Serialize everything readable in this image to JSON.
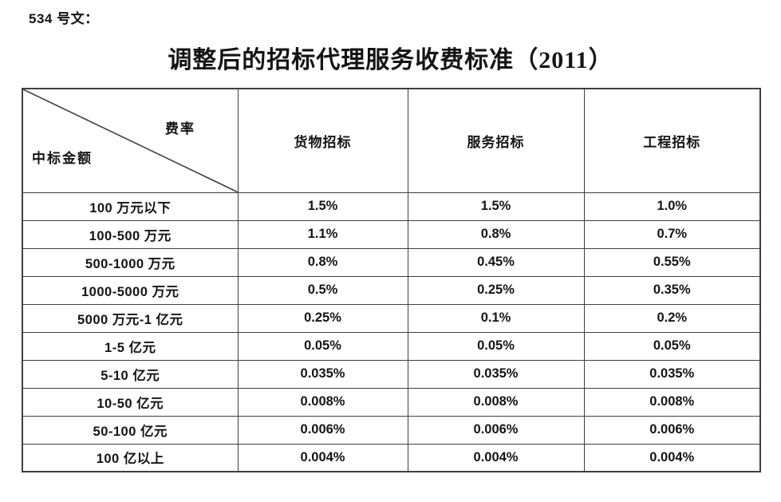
{
  "page": {
    "doc_label": "534 号文：",
    "title": "调整后的招标代理服务收费标准（2011）"
  },
  "table": {
    "corner": {
      "top_right": "费率",
      "bottom_left": "中标金额"
    },
    "columns": [
      "货物招标",
      "服务招标",
      "工程招标"
    ],
    "rows": [
      {
        "amount": "100 万元以下",
        "rates": [
          "1.5%",
          "1.5%",
          "1.0%"
        ]
      },
      {
        "amount": "100-500 万元",
        "rates": [
          "1.1%",
          "0.8%",
          "0.7%"
        ]
      },
      {
        "amount": "500-1000 万元",
        "rates": [
          "0.8%",
          "0.45%",
          "0.55%"
        ]
      },
      {
        "amount": "1000-5000 万元",
        "rates": [
          "0.5%",
          "0.25%",
          "0.35%"
        ]
      },
      {
        "amount": "5000 万元-1 亿元",
        "rates": [
          "0.25%",
          "0.1%",
          "0.2%"
        ]
      },
      {
        "amount": "1-5 亿元",
        "rates": [
          "0.05%",
          "0.05%",
          "0.05%"
        ]
      },
      {
        "amount": "5-10 亿元",
        "rates": [
          "0.035%",
          "0.035%",
          "0.035%"
        ]
      },
      {
        "amount": "10-50 亿元",
        "rates": [
          "0.008%",
          "0.008%",
          "0.008%"
        ]
      },
      {
        "amount": "50-100 亿元",
        "rates": [
          "0.006%",
          "0.006%",
          "0.006%"
        ]
      },
      {
        "amount": "100 亿以上",
        "rates": [
          "0.004%",
          "0.004%",
          "0.004%"
        ]
      }
    ],
    "colors": {
      "border": "#3f3f3f",
      "text": "#141414",
      "background": "#ffffff"
    }
  }
}
